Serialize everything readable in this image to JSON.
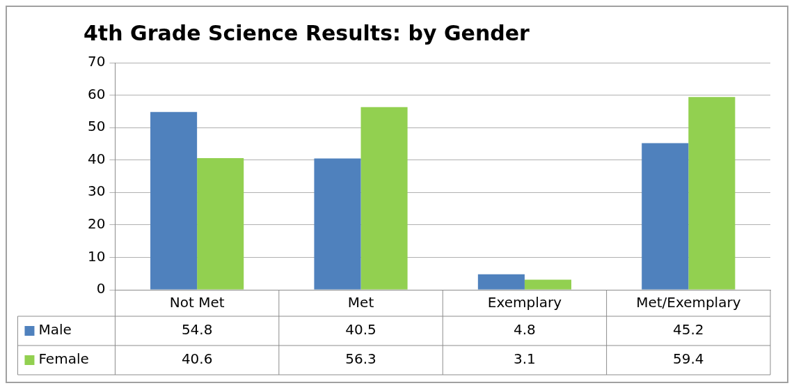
{
  "chart_data": {
    "type": "bar",
    "title": "4th Grade Science Results: by Gender",
    "categories": [
      "Not Met",
      "Met",
      "Exemplary",
      "Met/Exemplary"
    ],
    "series": [
      {
        "name": "Male",
        "color": "#4f81bd",
        "values": [
          54.8,
          40.5,
          4.8,
          45.2
        ]
      },
      {
        "name": "Female",
        "color": "#92d050",
        "values": [
          40.6,
          56.3,
          3.1,
          59.4
        ]
      }
    ],
    "ylim": [
      0,
      70
    ],
    "yticks": [
      0,
      10,
      20,
      30,
      40,
      50,
      60,
      70
    ],
    "grid": "y",
    "legend": "bottom",
    "data_labels": true
  }
}
